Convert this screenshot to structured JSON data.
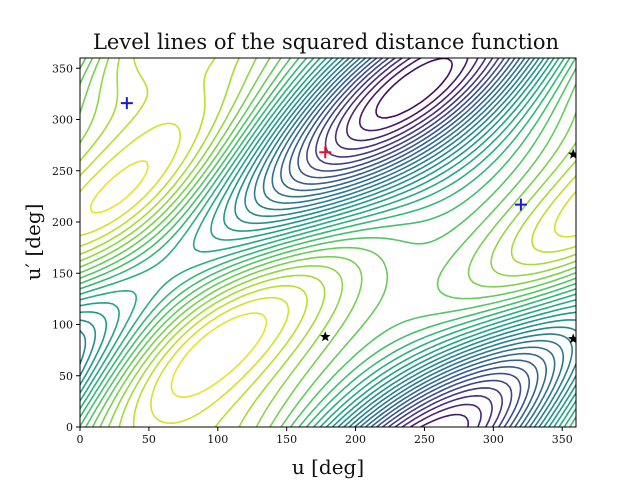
{
  "chart_data": {
    "type": "contour",
    "title": "Level lines of the squared distance function",
    "xlabel": "u [deg]",
    "ylabel": "u′ [deg]",
    "xlim": [
      0,
      360
    ],
    "ylim": [
      0,
      360
    ],
    "xticks": [
      0,
      50,
      100,
      150,
      200,
      250,
      300,
      350
    ],
    "yticks": [
      0,
      50,
      100,
      150,
      200,
      250,
      300,
      350
    ],
    "colormap": "viridis",
    "grid": false,
    "maximum_marker": {
      "symbol": "+",
      "color": "#e8102a",
      "x": 178,
      "y": 268
    },
    "saddle_markers": {
      "symbol": "+",
      "color": "#1a1ad6",
      "points": [
        {
          "x": 34,
          "y": 316
        },
        {
          "x": 320,
          "y": 217
        }
      ]
    },
    "minimum_markers": {
      "symbol": "★",
      "color": "#000000",
      "points": [
        {
          "x": 178,
          "y": 88
        },
        {
          "x": 358,
          "y": 266
        },
        {
          "x": 358,
          "y": 86
        }
      ]
    }
  }
}
